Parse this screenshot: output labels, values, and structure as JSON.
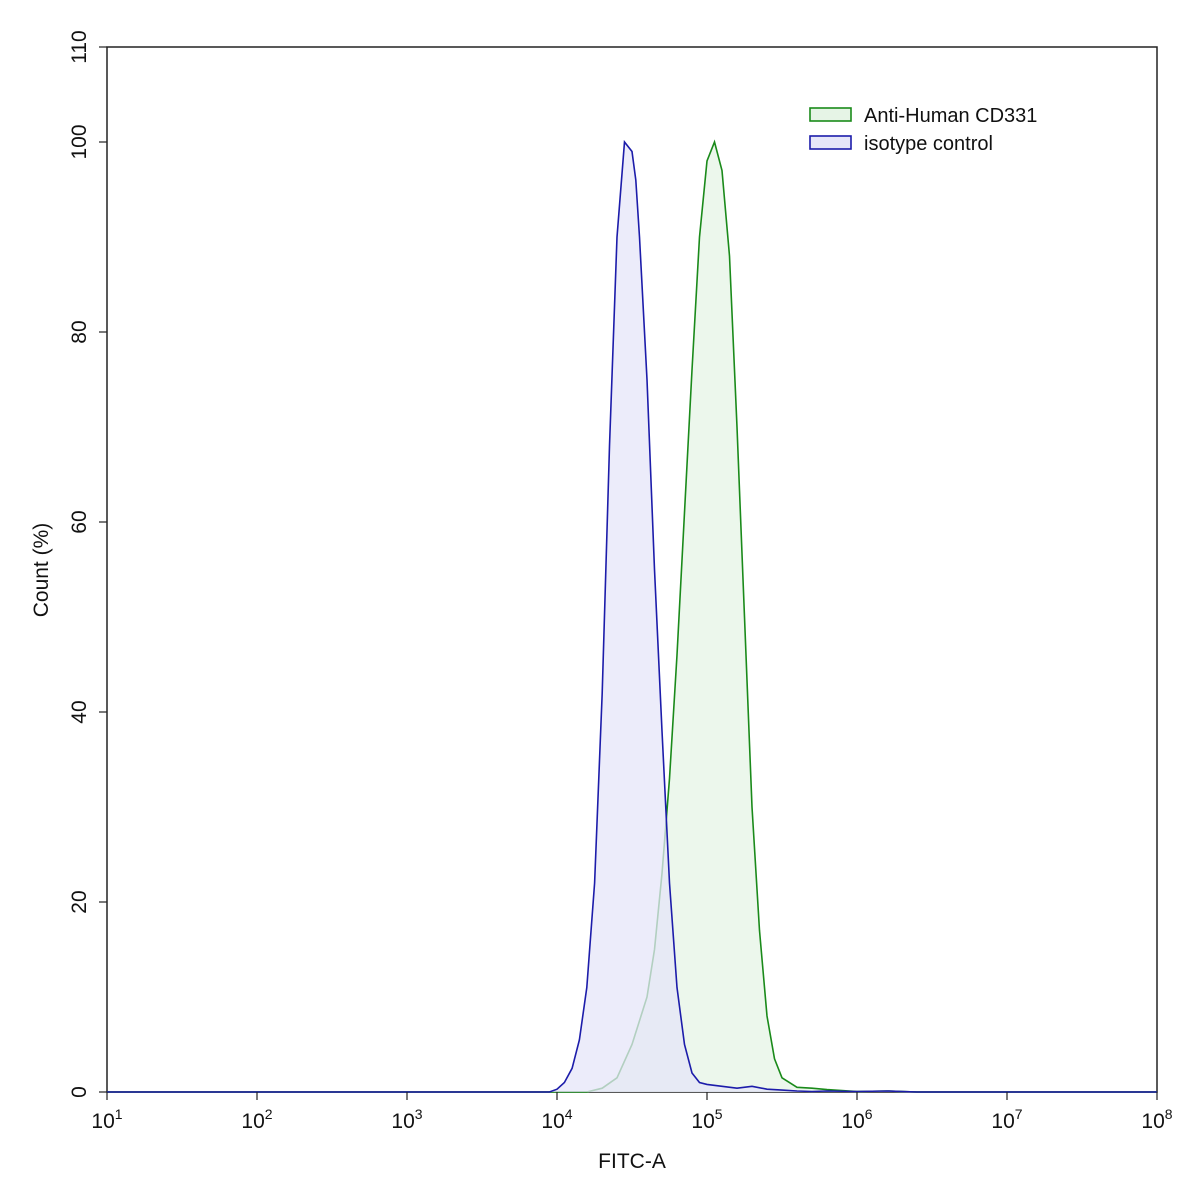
{
  "chart_data": {
    "type": "area",
    "xlabel": "FITC-A",
    "ylabel": "Count  (%)",
    "x_scale": "log10",
    "xlim": [
      10,
      100000000
    ],
    "ylim": [
      0,
      110
    ],
    "x_ticks": [
      {
        "base": "10",
        "exp": "1",
        "value": 10
      },
      {
        "base": "10",
        "exp": "2",
        "value": 100
      },
      {
        "base": "10",
        "exp": "3",
        "value": 1000
      },
      {
        "base": "10",
        "exp": "4",
        "value": 10000
      },
      {
        "base": "10",
        "exp": "5",
        "value": 100000
      },
      {
        "base": "10",
        "exp": "6",
        "value": 1000000
      },
      {
        "base": "10",
        "exp": "7",
        "value": 10000000
      },
      {
        "base": "10",
        "exp": "8",
        "value": 100000000
      }
    ],
    "y_ticks": [
      "0",
      "20",
      "40",
      "60",
      "80",
      "100",
      "110"
    ],
    "y_tick_values": [
      0,
      20,
      40,
      60,
      80,
      100,
      110
    ],
    "grid": false,
    "legend_position": "top-right",
    "series": [
      {
        "name": "Anti-Human CD331",
        "line_color": "#1a8a1a",
        "fill_color": "#e6f4e6",
        "x": [
          10,
          10000,
          15800,
          20000,
          25100,
          31600,
          39800,
          44700,
          50100,
          56200,
          63100,
          70800,
          79400,
          89100,
          100000,
          112200,
          125900,
          141300,
          158500,
          177800,
          199500,
          223900,
          251200,
          281800,
          316200,
          398100,
          501200,
          631000,
          794300,
          1000000,
          1584900,
          2511900,
          100000000
        ],
        "y": [
          0,
          0,
          0,
          0.4,
          1.5,
          5,
          10,
          15,
          23,
          33,
          46,
          61,
          76,
          90,
          98,
          100,
          97,
          88,
          70,
          50,
          30,
          17,
          8,
          3.5,
          1.5,
          0.5,
          0.4,
          0.25,
          0.15,
          0.05,
          0.1,
          0,
          0
        ]
      },
      {
        "name": "isotype control",
        "line_color": "#1c1caa",
        "fill_color": "#e6e6f8",
        "x": [
          10,
          8900,
          10000,
          11200,
          12600,
          14100,
          15800,
          17800,
          20000,
          22400,
          25100,
          28200,
          31600,
          33500,
          35500,
          39800,
          44700,
          50100,
          56200,
          63100,
          70800,
          79400,
          89100,
          100000,
          125900,
          158500,
          199500,
          251200,
          316200,
          398100,
          501200,
          631000,
          1000000,
          1584900,
          2511900,
          100000000
        ],
        "y": [
          0,
          0,
          0.3,
          1,
          2.5,
          5.5,
          11,
          22,
          42,
          68,
          90,
          100,
          99,
          96,
          90,
          75,
          55,
          38,
          22,
          11,
          5,
          2,
          1,
          0.8,
          0.6,
          0.4,
          0.6,
          0.3,
          0.2,
          0.1,
          0.05,
          0.1,
          0.05,
          0.1,
          0,
          0
        ]
      }
    ]
  }
}
